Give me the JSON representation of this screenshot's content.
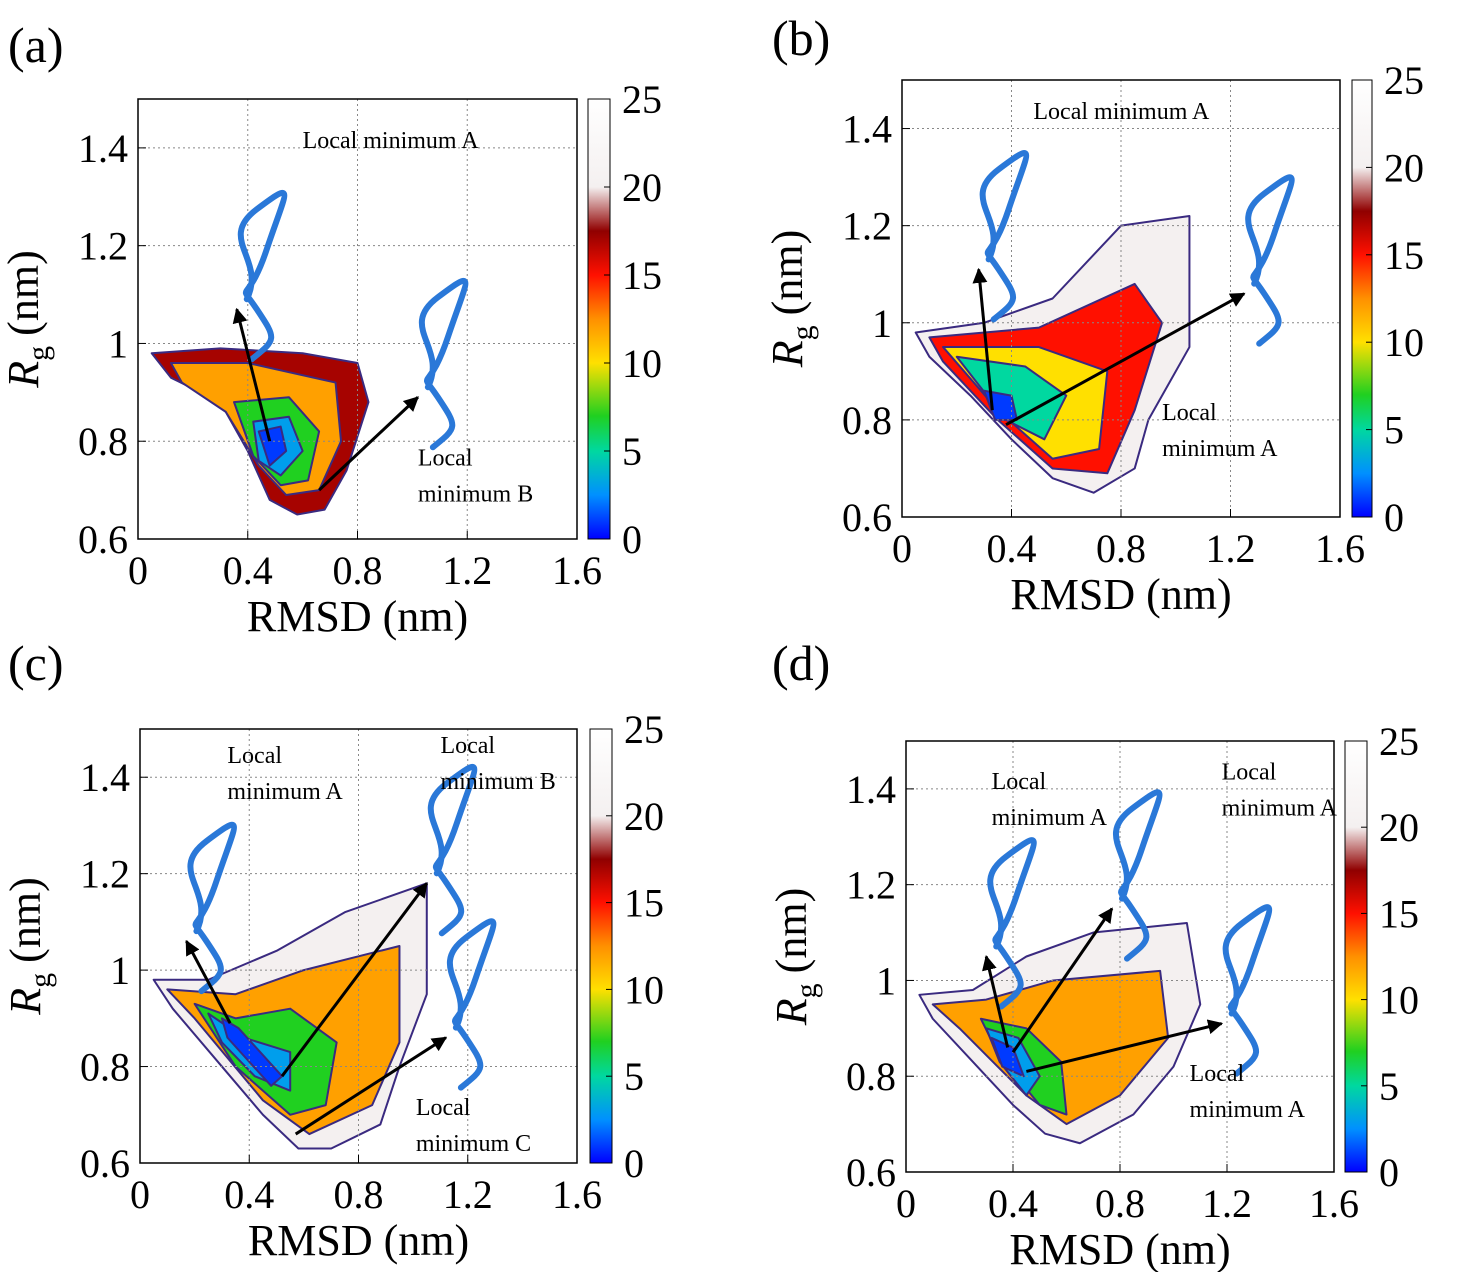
{
  "chart_data": [
    {
      "type": "contour",
      "panel": "(a)",
      "xlabel": "RMSD (nm)",
      "ylabel": [
        "R",
        "g",
        "(nm)"
      ],
      "xlim": [
        0,
        1.6
      ],
      "ylim": [
        0.6,
        1.5
      ],
      "xticks": [
        0,
        0.4,
        0.8,
        1.2,
        1.6
      ],
      "yticks": [
        0.6,
        0.8,
        1,
        1.2,
        1.4
      ],
      "grid": true,
      "clim": [
        0,
        25
      ],
      "cticks": [
        0,
        5,
        10,
        15,
        20,
        25
      ],
      "contours": [
        {
          "level": 17,
          "points": [
            [
              0.05,
              0.98
            ],
            [
              0.3,
              0.99
            ],
            [
              0.6,
              0.98
            ],
            [
              0.8,
              0.96
            ],
            [
              0.84,
              0.88
            ],
            [
              0.76,
              0.74
            ],
            [
              0.68,
              0.66
            ],
            [
              0.58,
              0.65
            ],
            [
              0.48,
              0.68
            ],
            [
              0.4,
              0.78
            ],
            [
              0.3,
              0.88
            ],
            [
              0.12,
              0.93
            ]
          ]
        },
        {
          "level": 12,
          "points": [
            [
              0.12,
              0.96
            ],
            [
              0.4,
              0.96
            ],
            [
              0.72,
              0.92
            ],
            [
              0.74,
              0.8
            ],
            [
              0.66,
              0.7
            ],
            [
              0.54,
              0.69
            ],
            [
              0.44,
              0.75
            ],
            [
              0.32,
              0.86
            ],
            [
              0.16,
              0.92
            ]
          ]
        },
        {
          "level": 7,
          "points": [
            [
              0.35,
              0.88
            ],
            [
              0.55,
              0.89
            ],
            [
              0.66,
              0.82
            ],
            [
              0.62,
              0.72
            ],
            [
              0.52,
              0.71
            ],
            [
              0.42,
              0.77
            ]
          ]
        },
        {
          "level": 3,
          "points": [
            [
              0.42,
              0.84
            ],
            [
              0.55,
              0.85
            ],
            [
              0.6,
              0.78
            ],
            [
              0.52,
              0.73
            ],
            [
              0.44,
              0.76
            ]
          ]
        },
        {
          "level": 1,
          "points": [
            [
              0.44,
              0.82
            ],
            [
              0.52,
              0.83
            ],
            [
              0.54,
              0.78
            ],
            [
              0.48,
              0.75
            ]
          ]
        }
      ],
      "annotations": [
        {
          "text": [
            "Local minimum A"
          ],
          "text_at": [
            0.6,
            1.4
          ],
          "from": [
            0.48,
            0.8
          ],
          "to": [
            0.36,
            1.07
          ]
        },
        {
          "text": [
            "Local",
            "minimum B"
          ],
          "text_at": [
            1.02,
            0.75
          ],
          "from": [
            0.66,
            0.7
          ],
          "to": [
            1.02,
            0.89
          ]
        }
      ]
    },
    {
      "type": "contour",
      "panel": "(b)",
      "xlabel": "RMSD (nm)",
      "ylabel": [
        "R",
        "g",
        "(nm)"
      ],
      "xlim": [
        0,
        1.6
      ],
      "ylim": [
        0.6,
        1.5
      ],
      "xticks": [
        0,
        0.4,
        0.8,
        1.2,
        1.6
      ],
      "yticks": [
        0.6,
        0.8,
        1,
        1.2,
        1.4
      ],
      "grid": true,
      "clim": [
        0,
        25
      ],
      "cticks": [
        0,
        5,
        10,
        15,
        20,
        25
      ],
      "contours": [
        {
          "level": 20,
          "points": [
            [
              0.05,
              0.98
            ],
            [
              0.3,
              1.0
            ],
            [
              0.55,
              1.05
            ],
            [
              0.8,
              1.2
            ],
            [
              1.05,
              1.22
            ],
            [
              1.05,
              0.95
            ],
            [
              0.9,
              0.8
            ],
            [
              0.85,
              0.7
            ],
            [
              0.7,
              0.65
            ],
            [
              0.55,
              0.68
            ],
            [
              0.4,
              0.76
            ],
            [
              0.25,
              0.85
            ],
            [
              0.1,
              0.93
            ]
          ]
        },
        {
          "level": 15,
          "points": [
            [
              0.1,
              0.97
            ],
            [
              0.5,
              0.99
            ],
            [
              0.85,
              1.08
            ],
            [
              0.95,
              1.0
            ],
            [
              0.85,
              0.82
            ],
            [
              0.75,
              0.69
            ],
            [
              0.55,
              0.7
            ],
            [
              0.35,
              0.8
            ],
            [
              0.15,
              0.92
            ]
          ]
        },
        {
          "level": 10,
          "points": [
            [
              0.15,
              0.95
            ],
            [
              0.5,
              0.95
            ],
            [
              0.75,
              0.9
            ],
            [
              0.72,
              0.74
            ],
            [
              0.55,
              0.72
            ],
            [
              0.35,
              0.82
            ]
          ]
        },
        {
          "level": 5,
          "points": [
            [
              0.2,
              0.93
            ],
            [
              0.45,
              0.91
            ],
            [
              0.6,
              0.85
            ],
            [
              0.52,
              0.76
            ],
            [
              0.38,
              0.8
            ]
          ]
        },
        {
          "level": 1,
          "points": [
            [
              0.3,
              0.86
            ],
            [
              0.4,
              0.85
            ],
            [
              0.42,
              0.8
            ],
            [
              0.34,
              0.8
            ]
          ]
        }
      ],
      "annotations": [
        {
          "text": [
            "Local minimum A"
          ],
          "text_at": [
            0.48,
            1.42
          ],
          "from": [
            0.33,
            0.82
          ],
          "to": [
            0.28,
            1.11
          ]
        },
        {
          "text": [
            "Local",
            "minimum A"
          ],
          "text_at": [
            0.95,
            0.8
          ],
          "from": [
            0.38,
            0.79
          ],
          "to": [
            1.25,
            1.06
          ]
        }
      ]
    },
    {
      "type": "contour",
      "panel": "(c)",
      "xlabel": "RMSD (nm)",
      "ylabel": [
        "R",
        "g",
        "(nm)"
      ],
      "xlim": [
        0,
        1.6
      ],
      "ylim": [
        0.6,
        1.5
      ],
      "xticks": [
        0,
        0.4,
        0.8,
        1.2,
        1.6
      ],
      "yticks": [
        0.6,
        0.8,
        1,
        1.2,
        1.4
      ],
      "grid": true,
      "clim": [
        0,
        25
      ],
      "cticks": [
        0,
        5,
        10,
        15,
        20,
        25
      ],
      "contours": [
        {
          "level": 20,
          "points": [
            [
              0.05,
              0.98
            ],
            [
              0.25,
              0.98
            ],
            [
              0.5,
              1.04
            ],
            [
              0.75,
              1.12
            ],
            [
              1.05,
              1.18
            ],
            [
              1.05,
              0.95
            ],
            [
              0.95,
              0.8
            ],
            [
              0.88,
              0.68
            ],
            [
              0.7,
              0.63
            ],
            [
              0.58,
              0.63
            ],
            [
              0.45,
              0.7
            ],
            [
              0.3,
              0.8
            ],
            [
              0.12,
              0.92
            ]
          ]
        },
        {
          "level": 12,
          "points": [
            [
              0.1,
              0.96
            ],
            [
              0.35,
              0.95
            ],
            [
              0.6,
              1.0
            ],
            [
              0.95,
              1.05
            ],
            [
              0.95,
              0.85
            ],
            [
              0.85,
              0.72
            ],
            [
              0.62,
              0.66
            ],
            [
              0.45,
              0.73
            ],
            [
              0.2,
              0.9
            ]
          ]
        },
        {
          "level": 7,
          "points": [
            [
              0.2,
              0.93
            ],
            [
              0.35,
              0.9
            ],
            [
              0.55,
              0.92
            ],
            [
              0.72,
              0.85
            ],
            [
              0.68,
              0.72
            ],
            [
              0.55,
              0.7
            ],
            [
              0.35,
              0.8
            ]
          ]
        },
        {
          "level": 3,
          "points": [
            [
              0.25,
              0.91
            ],
            [
              0.38,
              0.86
            ],
            [
              0.55,
              0.83
            ],
            [
              0.55,
              0.75
            ],
            [
              0.42,
              0.78
            ],
            [
              0.3,
              0.85
            ]
          ]
        },
        {
          "level": 1,
          "points": [
            [
              0.3,
              0.9
            ],
            [
              0.36,
              0.88
            ],
            [
              0.52,
              0.78
            ],
            [
              0.48,
              0.76
            ],
            [
              0.32,
              0.86
            ]
          ]
        }
      ],
      "annotations": [
        {
          "text": [
            "Local",
            "minimum A"
          ],
          "text_at": [
            0.32,
            1.43
          ],
          "from": [
            0.33,
            0.89
          ],
          "to": [
            0.17,
            1.06
          ]
        },
        {
          "text": [
            "Local",
            "minimum B"
          ],
          "text_at": [
            1.1,
            1.45
          ],
          "from": [
            0.52,
            0.78
          ],
          "to": [
            1.05,
            1.18
          ]
        },
        {
          "text": [
            "Local",
            "minimum C"
          ],
          "text_at": [
            1.01,
            0.7
          ],
          "from": [
            0.57,
            0.66
          ],
          "to": [
            1.12,
            0.86
          ]
        }
      ]
    },
    {
      "type": "contour",
      "panel": "(d)",
      "xlabel": "RMSD (nm)",
      "ylabel": [
        "R",
        "g",
        "(nm)"
      ],
      "xlim": [
        0,
        1.6
      ],
      "ylim": [
        0.6,
        1.5
      ],
      "xticks": [
        0,
        0.4,
        0.8,
        1.2,
        1.6
      ],
      "yticks": [
        0.6,
        0.8,
        1,
        1.2,
        1.4
      ],
      "grid": true,
      "clim": [
        0,
        25
      ],
      "cticks": [
        0,
        5,
        10,
        15,
        20,
        25
      ],
      "contours": [
        {
          "level": 20,
          "points": [
            [
              0.05,
              0.97
            ],
            [
              0.25,
              0.98
            ],
            [
              0.45,
              1.05
            ],
            [
              0.7,
              1.1
            ],
            [
              1.05,
              1.12
            ],
            [
              1.1,
              0.95
            ],
            [
              1.0,
              0.82
            ],
            [
              0.85,
              0.72
            ],
            [
              0.65,
              0.66
            ],
            [
              0.52,
              0.68
            ],
            [
              0.4,
              0.74
            ],
            [
              0.25,
              0.83
            ],
            [
              0.1,
              0.92
            ]
          ]
        },
        {
          "level": 12,
          "points": [
            [
              0.1,
              0.95
            ],
            [
              0.3,
              0.96
            ],
            [
              0.55,
              1.0
            ],
            [
              0.95,
              1.02
            ],
            [
              0.98,
              0.88
            ],
            [
              0.8,
              0.76
            ],
            [
              0.6,
              0.7
            ],
            [
              0.45,
              0.76
            ],
            [
              0.2,
              0.9
            ]
          ]
        },
        {
          "level": 7,
          "points": [
            [
              0.28,
              0.92
            ],
            [
              0.45,
              0.9
            ],
            [
              0.58,
              0.83
            ],
            [
              0.6,
              0.72
            ],
            [
              0.5,
              0.74
            ],
            [
              0.35,
              0.84
            ]
          ]
        },
        {
          "level": 3,
          "points": [
            [
              0.3,
              0.9
            ],
            [
              0.42,
              0.88
            ],
            [
              0.5,
              0.8
            ],
            [
              0.45,
              0.76
            ],
            [
              0.35,
              0.83
            ]
          ]
        },
        {
          "level": 1,
          "points": [
            [
              0.32,
              0.88
            ],
            [
              0.4,
              0.86
            ],
            [
              0.44,
              0.8
            ],
            [
              0.36,
              0.82
            ]
          ]
        }
      ],
      "annotations": [
        {
          "text": [
            "Local",
            "minimum A"
          ],
          "text_at": [
            0.32,
            1.4
          ],
          "from": [
            0.38,
            0.86
          ],
          "to": [
            0.3,
            1.05
          ]
        },
        {
          "text": [
            "Local",
            "minimum A"
          ],
          "text_at": [
            1.18,
            1.42
          ],
          "from": [
            0.4,
            0.85
          ],
          "to": [
            0.77,
            1.15
          ]
        },
        {
          "text": [
            "Local",
            "minimum A"
          ],
          "text_at": [
            1.06,
            0.79
          ],
          "from": [
            0.45,
            0.81
          ],
          "to": [
            1.18,
            0.91
          ]
        }
      ]
    }
  ],
  "colormap": [
    {
      "value": 0,
      "color": "#0000ff"
    },
    {
      "value": 2.5,
      "color": "#0090ff"
    },
    {
      "value": 5,
      "color": "#00d8a0"
    },
    {
      "value": 7,
      "color": "#20d020"
    },
    {
      "value": 10,
      "color": "#ffe000"
    },
    {
      "value": 12.5,
      "color": "#ff9000"
    },
    {
      "value": 15,
      "color": "#ff1000"
    },
    {
      "value": 17.5,
      "color": "#900000"
    },
    {
      "value": 20,
      "color": "#f4f0f0"
    },
    {
      "value": 25,
      "color": "#ffffff"
    }
  ]
}
